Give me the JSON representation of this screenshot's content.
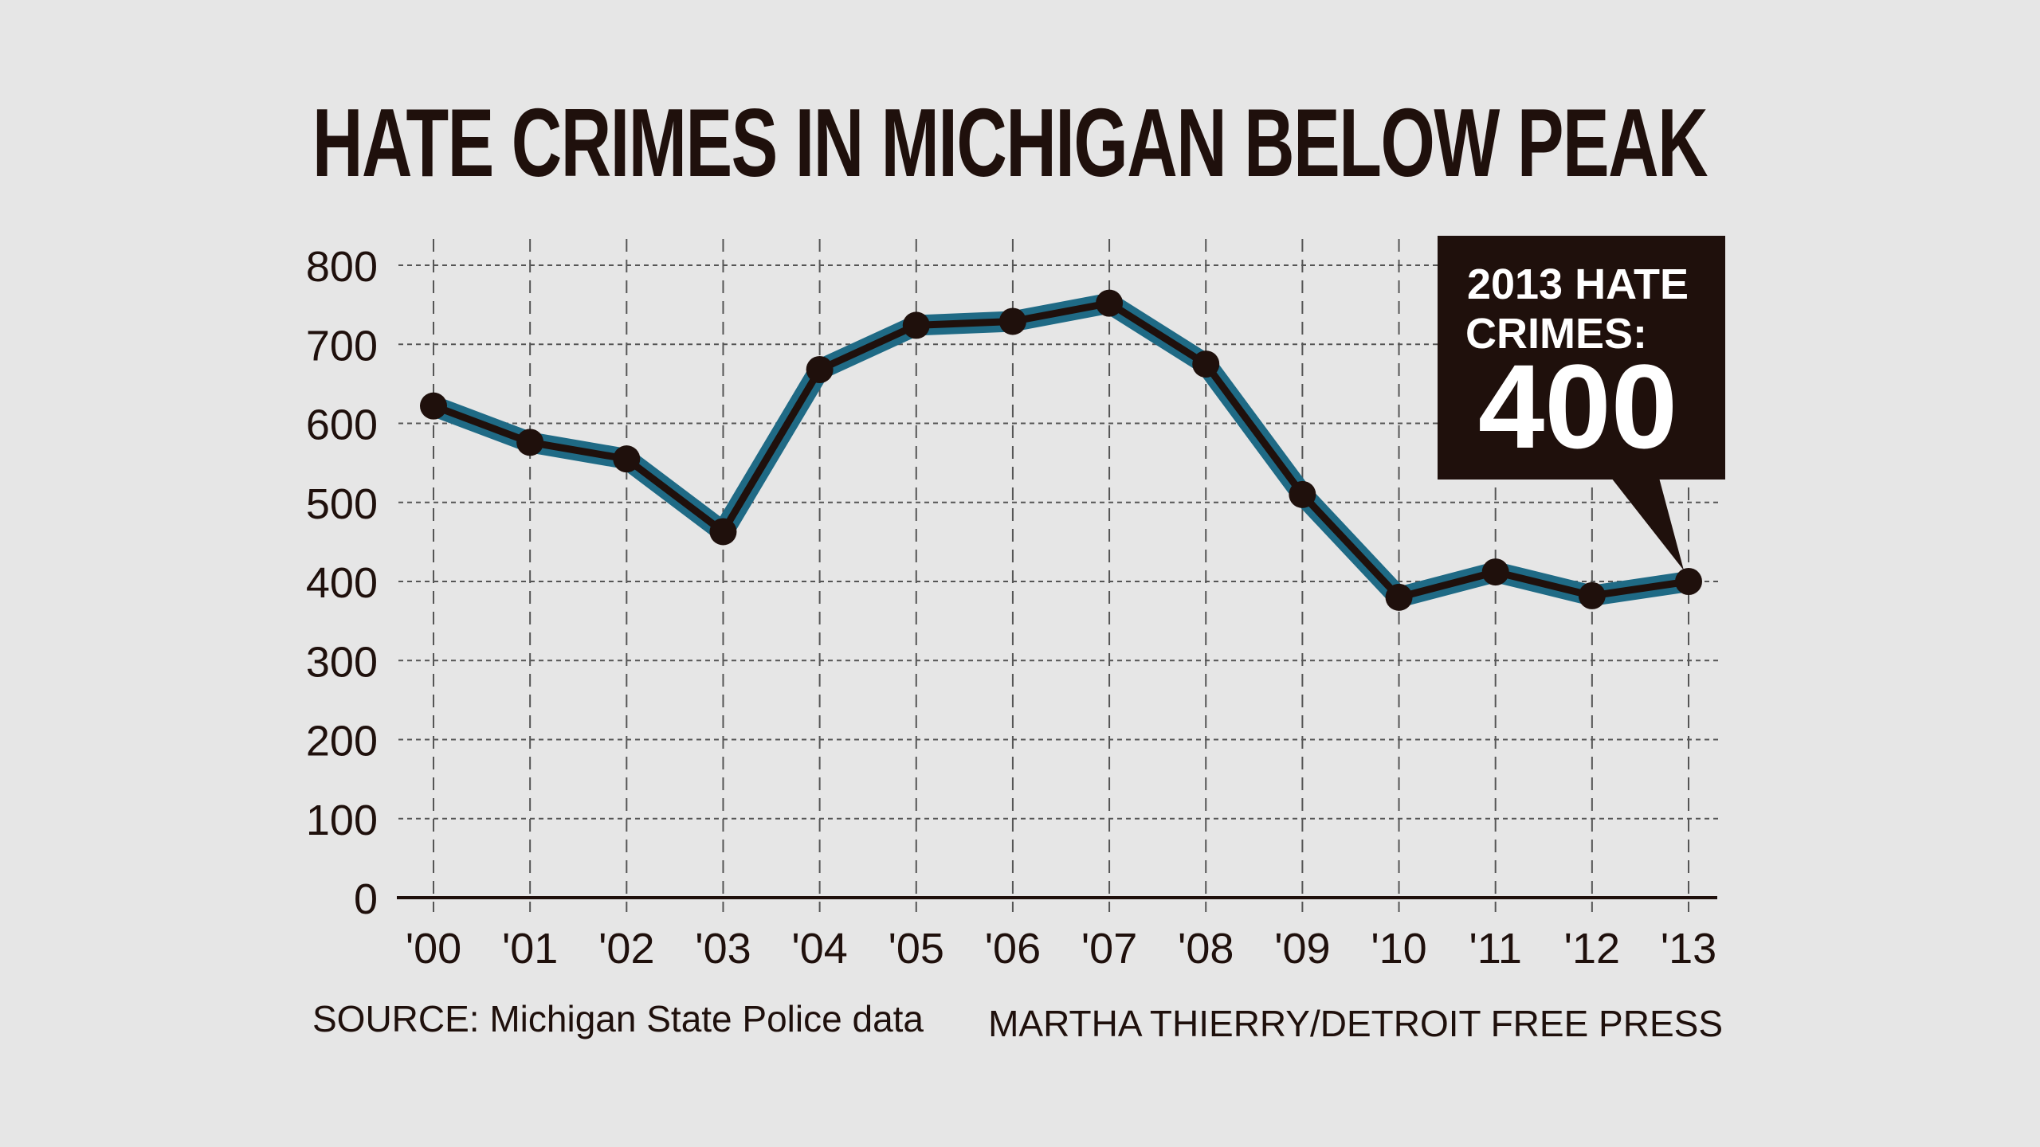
{
  "chart_data": {
    "type": "line",
    "title": "HATE CRIMES IN MICHIGAN BELOW PEAK",
    "xlabel": "",
    "ylabel": "",
    "categories": [
      "'00",
      "'01",
      "'02",
      "'03",
      "'04",
      "'05",
      "'06",
      "'07",
      "'08",
      "'09",
      "'10",
      "'11",
      "'12",
      "'13"
    ],
    "series": [
      {
        "name": "Hate crimes",
        "values": [
          622,
          576,
          555,
          463,
          668,
          724,
          729,
          752,
          675,
          510,
          380,
          412,
          382,
          400
        ]
      }
    ],
    "yticks": [
      "0",
      "100",
      "200",
      "300",
      "400",
      "500",
      "600",
      "700",
      "800"
    ],
    "ylim": [
      0,
      800
    ],
    "grid": true,
    "annotation": {
      "line1": "2013 HATE",
      "line2": "CRIMES:",
      "value": "400"
    },
    "source": "SOURCE: Michigan State Police data",
    "credit": "MARTHA THIERRY/DETROIT FREE PRESS",
    "colors": {
      "background": "#e6e6e6",
      "line_outer": "#1f6a85",
      "line_inner": "#1f100c",
      "text": "#1f100c",
      "callout_bg": "#1f100c"
    }
  }
}
